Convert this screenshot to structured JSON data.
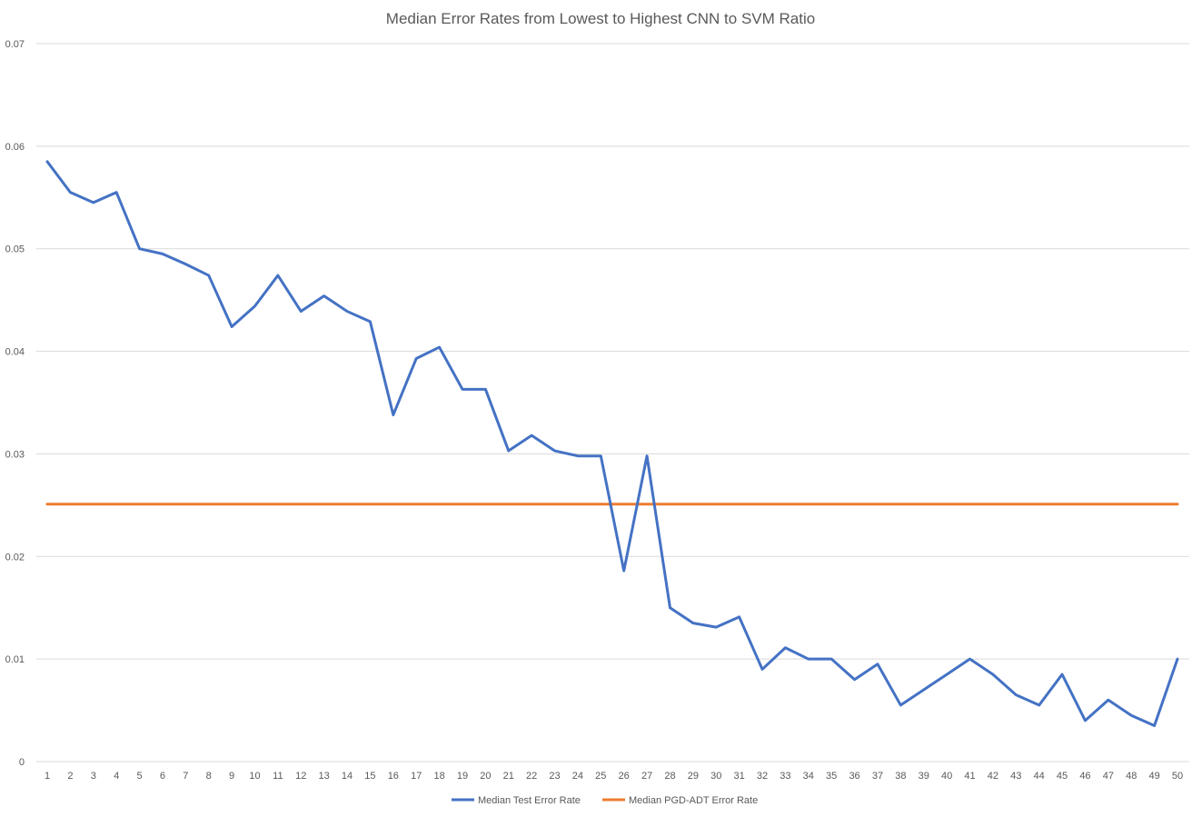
{
  "colors": {
    "test_series": "#4472c4",
    "pgd_series": "#ed7d31",
    "gridline": "#d9d9d9",
    "text": "#595959"
  },
  "chart_data": {
    "type": "line",
    "title": "Median Error Rates from Lowest to Highest CNN to SVM Ratio",
    "xlabel": "",
    "ylabel": "",
    "ylim": [
      0,
      0.07
    ],
    "yticks": [
      0,
      0.01,
      0.02,
      0.03,
      0.04,
      0.05,
      0.06,
      0.07
    ],
    "ytick_labels": [
      "0",
      "0.01",
      "0.02",
      "0.03",
      "0.04",
      "0.05",
      "0.06",
      "0.07"
    ],
    "grid": true,
    "legend": "bottom",
    "x": [
      "1",
      "2",
      "3",
      "4",
      "5",
      "6",
      "7",
      "8",
      "9",
      "10",
      "11",
      "12",
      "13",
      "14",
      "15",
      "16",
      "17",
      "18",
      "19",
      "20",
      "21",
      "22",
      "23",
      "24",
      "25",
      "26",
      "27",
      "28",
      "29",
      "30",
      "31",
      "32",
      "33",
      "34",
      "35",
      "36",
      "37",
      "38",
      "39",
      "40",
      "41",
      "42",
      "43",
      "44",
      "45",
      "46",
      "47",
      "48",
      "49",
      "50"
    ],
    "series": [
      {
        "name": "Median Test Error Rate",
        "color": "#4472c4",
        "values": [
          0.0585,
          0.0555,
          0.0545,
          0.0555,
          0.05,
          0.0495,
          0.0485,
          0.0474,
          0.0424,
          0.0444,
          0.0474,
          0.0439,
          0.0454,
          0.0439,
          0.0429,
          0.0338,
          0.0393,
          0.0404,
          0.0363,
          0.0363,
          0.0303,
          0.0318,
          0.0303,
          0.0298,
          0.0298,
          0.0186,
          0.0298,
          0.015,
          0.0135,
          0.0131,
          0.0141,
          0.009,
          0.0111,
          0.01,
          0.01,
          0.008,
          0.0095,
          0.0055,
          0.007,
          0.0085,
          0.01,
          0.0085,
          0.0065,
          0.0055,
          0.0085,
          0.004,
          0.006,
          0.0045,
          0.0035,
          0.01
        ]
      },
      {
        "name": "Median PGD-ADT Error Rate",
        "color": "#ed7d31",
        "values": [
          0.0251,
          0.0251,
          0.0251,
          0.0251,
          0.0251,
          0.0251,
          0.0251,
          0.0251,
          0.0251,
          0.0251,
          0.0251,
          0.0251,
          0.0251,
          0.0251,
          0.0251,
          0.0251,
          0.0251,
          0.0251,
          0.0251,
          0.0251,
          0.0251,
          0.0251,
          0.0251,
          0.0251,
          0.0251,
          0.0251,
          0.0251,
          0.0251,
          0.0251,
          0.0251,
          0.0251,
          0.0251,
          0.0251,
          0.0251,
          0.0251,
          0.0251,
          0.0251,
          0.0251,
          0.0251,
          0.0251,
          0.0251,
          0.0251,
          0.0251,
          0.0251,
          0.0251,
          0.0251,
          0.0251,
          0.0251,
          0.0251,
          0.0251
        ]
      }
    ]
  }
}
